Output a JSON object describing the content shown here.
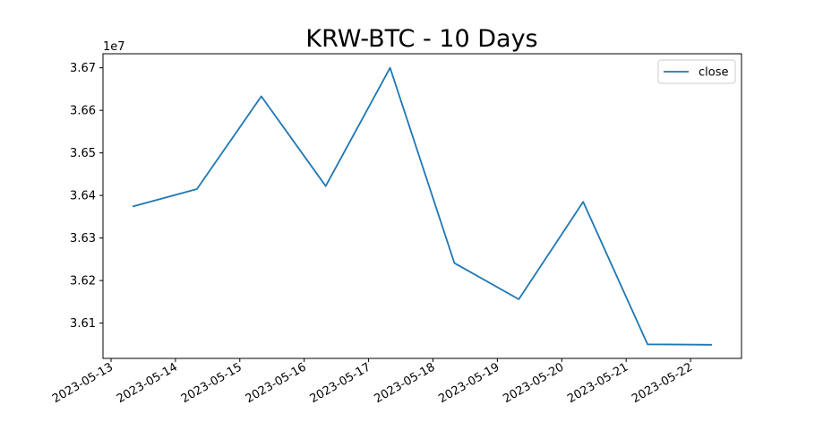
{
  "chart_data": {
    "type": "line",
    "title": "KRW-BTC - 10 Days",
    "xlabel": "",
    "ylabel": "",
    "y_offset_label": "1e7",
    "x": [
      "2023-05-13 08:00",
      "2023-05-14 08:00",
      "2023-05-15 08:00",
      "2023-05-16 08:00",
      "2023-05-17 08:00",
      "2023-05-18 08:00",
      "2023-05-19 08:00",
      "2023-05-20 08:00",
      "2023-05-21 08:00",
      "2023-05-22 08:00"
    ],
    "series": [
      {
        "name": "close",
        "color": "#1f77b4",
        "values": [
          36374000,
          36415000,
          36633000,
          36422000,
          36700000,
          36241000,
          36156000,
          36385000,
          36050000,
          36049000
        ]
      }
    ],
    "x_ticks": [
      "2023-05-13",
      "2023-05-14",
      "2023-05-15",
      "2023-05-16",
      "2023-05-17",
      "2023-05-18",
      "2023-05-19",
      "2023-05-20",
      "2023-05-21",
      "2023-05-22"
    ],
    "y_ticks": [
      {
        "value": 36100000,
        "label": "3.61"
      },
      {
        "value": 36200000,
        "label": "3.62"
      },
      {
        "value": 36300000,
        "label": "3.63"
      },
      {
        "value": 36400000,
        "label": "3.64"
      },
      {
        "value": 36500000,
        "label": "3.65"
      },
      {
        "value": 36600000,
        "label": "3.66"
      },
      {
        "value": 36700000,
        "label": "3.67"
      }
    ],
    "xlim": [
      "2023-05-12 21:00",
      "2023-05-22 19:00"
    ],
    "ylim": [
      36017000,
      36733000
    ],
    "grid": false,
    "legend_position": "top-right"
  }
}
